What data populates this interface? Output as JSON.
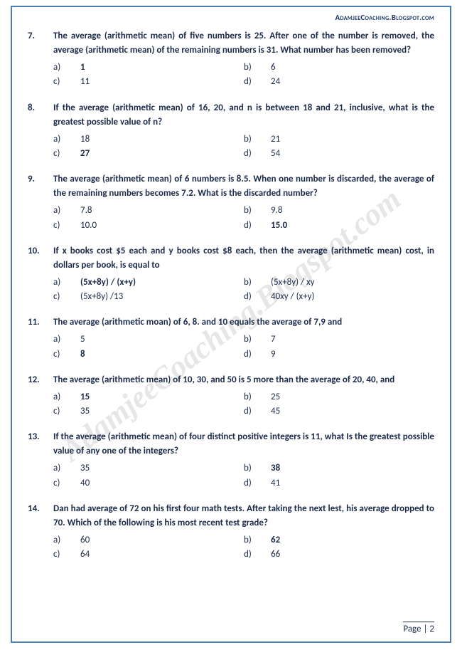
{
  "header": "AdamjeeCoaching.Blogspot.com",
  "watermark": "AdamjeeCoaching.Blogspot.com",
  "footer": "Page | 2",
  "questions": [
    {
      "num": "7.",
      "text": "The average (arithmetic mean) of five numbers is 25. After one of the number is removed, the average (arithmetic mean) of the remaining numbers is 31. What number has been removed?",
      "opts": [
        {
          "l": "a)",
          "v": "1",
          "b": true
        },
        {
          "l": "b)",
          "v": "6",
          "b": false
        },
        {
          "l": "c)",
          "v": "11",
          "b": false
        },
        {
          "l": "d)",
          "v": "24",
          "b": false
        }
      ]
    },
    {
      "num": "8.",
      "text": "If the average (arithmetic mean) of 16, 20, and n is between 18 and 21, inclusive, what is the greatest possible value of n?",
      "opts": [
        {
          "l": "a)",
          "v": "18",
          "b": false
        },
        {
          "l": "b)",
          "v": "21",
          "b": false
        },
        {
          "l": "c)",
          "v": "27",
          "b": true
        },
        {
          "l": "d)",
          "v": "54",
          "b": false
        }
      ]
    },
    {
      "num": "9.",
      "text": "The average (arithmetic mean) of 6 numbers is 8.5. When one number is discarded, the average of the remaining numbers becomes 7.2. What is the discarded number?",
      "opts": [
        {
          "l": "a)",
          "v": "7.8",
          "b": false
        },
        {
          "l": "b)",
          "v": " 9.8",
          "b": false
        },
        {
          "l": "c)",
          "v": "10.0",
          "b": false
        },
        {
          "l": "d)",
          "v": "15.0",
          "b": true
        }
      ]
    },
    {
      "num": "10.",
      "text": "If x books cost $5 each and y books cost $8 each, then the average (arithmetic mean) cost, in dollars per book, is equal to",
      "opts": [
        {
          "l": "a)",
          "v": "(5x+8y)  / (x+y)",
          "b": true
        },
        {
          "l": "b)",
          "v": "(5x+8y)  / xy",
          "b": false
        },
        {
          "l": "c)",
          "v": "(5x+8y) /13",
          "b": false
        },
        {
          "l": "d)",
          "v": "40xy / (x+y)",
          "b": false
        }
      ]
    },
    {
      "num": "11.",
      "text": "The average (arithmetic moan) of 6, 8. and 10 equals the average of 7,9 and",
      "opts": [
        {
          "l": "a)",
          "v": "5",
          "b": false
        },
        {
          "l": "b)",
          "v": "7",
          "b": false
        },
        {
          "l": "c)",
          "v": "8",
          "b": true
        },
        {
          "l": "d)",
          "v": "9",
          "b": false
        }
      ]
    },
    {
      "num": "12.",
      "text": "The average (arithmetic mean) of 10, 30, and 50 is 5 more than the average of 20, 40, and",
      "opts": [
        {
          "l": "a)",
          "v": "15",
          "b": true
        },
        {
          "l": "b)",
          "v": "25",
          "b": false
        },
        {
          "l": "c)",
          "v": "35",
          "b": false
        },
        {
          "l": "d)",
          "v": "45",
          "b": false
        }
      ]
    },
    {
      "num": "13.",
      "text": "If the average (arithmetic mean) of four distinct positive integers is 11, what Is the greatest possible value of any one of the integers?",
      "opts": [
        {
          "l": "a)",
          "v": "35",
          "b": false
        },
        {
          "l": "b)",
          "v": "38",
          "b": true
        },
        {
          "l": "c)",
          "v": "40",
          "b": false
        },
        {
          "l": "d)",
          "v": "41",
          "b": false
        }
      ]
    },
    {
      "num": "14.",
      "text": "Dan had average of 72 on his first four math tests. After taking the next lest, his average dropped to 70. Which of the following is his most recent test grade?",
      "opts": [
        {
          "l": "a)",
          "v": "60",
          "b": false
        },
        {
          "l": "b)",
          "v": "62",
          "b": true
        },
        {
          "l": "c)",
          "v": "64",
          "b": false
        },
        {
          "l": "d)",
          "v": "66",
          "b": false
        }
      ]
    }
  ]
}
